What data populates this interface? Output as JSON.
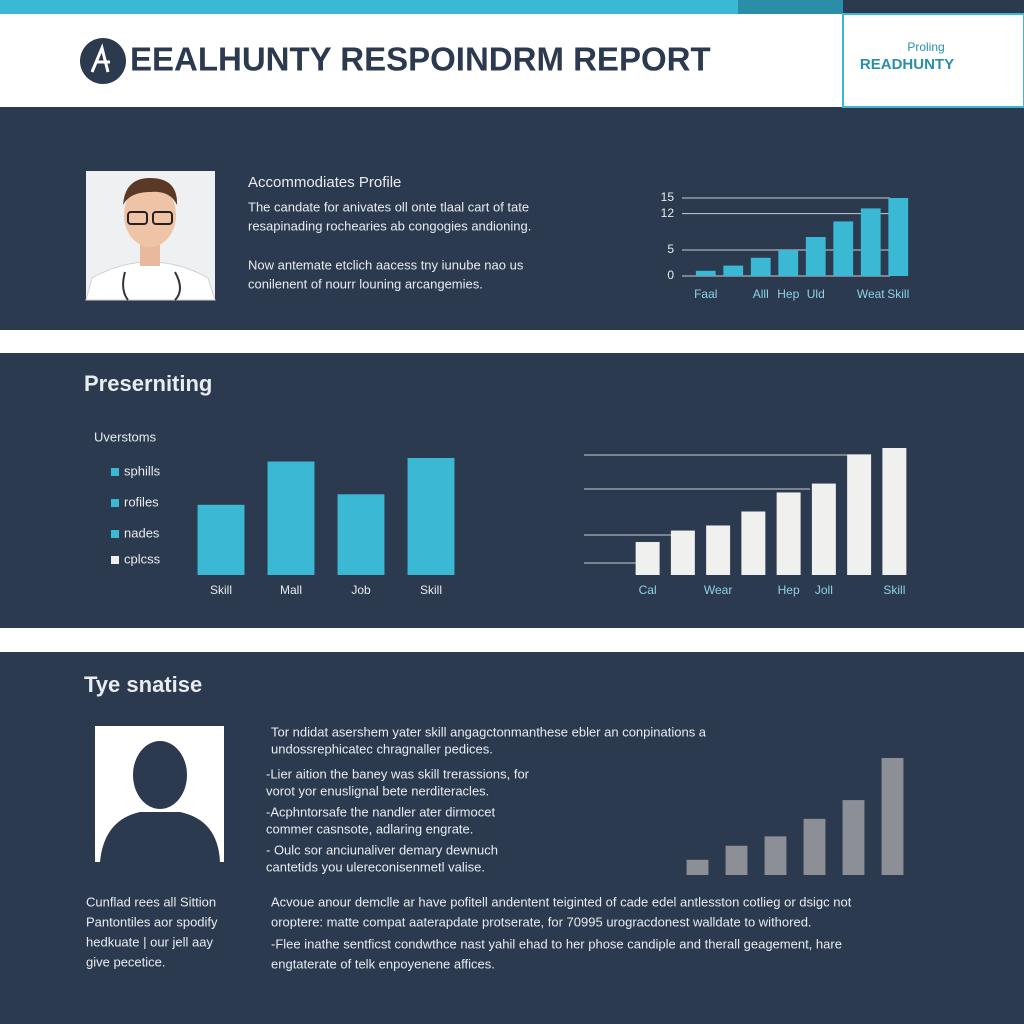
{
  "header": {
    "title": "EEALHUNTY RESPOINDRM REPORT",
    "badge": {
      "label": "Proling",
      "name": "READHUNTY"
    }
  },
  "profile": {
    "heading": "Accommodiates Profile",
    "lines": [
      "The candate for anivates oll onte tlaal cart of tate",
      "resapinading rochearies ab congogies andioning.",
      "Now antemate etclich aacess tny iunube nao us",
      "conilenent of nourr louning arcangemies."
    ]
  },
  "chart1": {
    "type": "bar",
    "color": "#3bb8d4",
    "categories": [
      "Faal",
      null,
      "Alll",
      "Hep",
      "Uld",
      null,
      "Weat",
      "Skill"
    ],
    "values": [
      1,
      2,
      3.5,
      5,
      7.5,
      10.5,
      13,
      15
    ],
    "ylim": [
      0,
      15
    ],
    "yticks": [
      0,
      5,
      12,
      15
    ],
    "grid": true
  },
  "presenting": {
    "heading": "Preserniting",
    "legend_title": "Uverstoms",
    "legend": [
      {
        "name": "sphills",
        "color": "#3bb8d4"
      },
      {
        "name": "rofiles",
        "color": "#3bb8d4"
      },
      {
        "name": "nades",
        "color": "#3bb8d4"
      },
      {
        "name": "cplcss",
        "color": "#f0f0ee"
      }
    ]
  },
  "chart2": {
    "type": "bar",
    "color": "#3bb8d4",
    "categories": [
      "Skill",
      "Mall",
      "Job",
      "Skill"
    ],
    "values": [
      60,
      97,
      69,
      100
    ]
  },
  "chart3": {
    "type": "bar",
    "color": "#f0f0ee",
    "categories": [
      "Cal",
      null,
      "Wear",
      null,
      "Hep",
      "Joll",
      null,
      "Skill"
    ],
    "values": [
      26,
      35,
      39,
      50,
      65,
      72,
      95,
      100
    ]
  },
  "summary": {
    "heading": "Tye snatise",
    "intro": [
      "Tor ndidat asershem yater skill angagctonmanthese ebler an conpinations a",
      "undossrephicatec chragnaller pedices."
    ],
    "bullets": [
      [
        "-Lier aition the baney was skill trerassions, for",
        "vorot yor enuslignal bete nerditeracles."
      ],
      [
        "-Acphntorsafe the nandler ater dirmocet",
        "commer casnsote, adlaring engrate."
      ],
      [
        "- Oulc sor anciunaliver demary dewnuch",
        "cantetids you ulereconisenmetl valise."
      ]
    ],
    "caption": [
      "Cunflad rees all Sittion",
      "Pantontiles aor spodify",
      "hedkuate | our jell aay",
      "give pecetice."
    ],
    "closing": [
      "Acvoue anour demclle ar have pofitell andentent teiginted of cade edel antlesston cotlieg or dsigc not",
      "oroptere: matte compat aaterapdate protserate, for 70995 urogracdonest walldate to withored.",
      "-Flee inathe sentficst condwthce nast yahil ehad to her phose candiple and therall geagement, hare",
      "engtaterate of telk enpoyenene affices."
    ]
  },
  "chart4": {
    "type": "bar",
    "color": "#8c9096",
    "values": [
      13,
      25,
      33,
      48,
      64,
      100
    ]
  }
}
